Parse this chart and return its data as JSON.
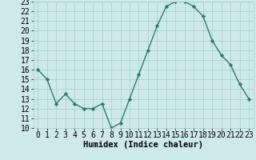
{
  "x": [
    0,
    1,
    2,
    3,
    4,
    5,
    6,
    7,
    8,
    9,
    10,
    11,
    12,
    13,
    14,
    15,
    16,
    17,
    18,
    19,
    20,
    21,
    22,
    23
  ],
  "y": [
    16,
    15,
    12.5,
    13.5,
    12.5,
    12,
    12,
    12.5,
    10,
    10.5,
    13,
    15.5,
    18,
    20.5,
    22.5,
    23,
    23,
    22.5,
    21.5,
    19,
    17.5,
    16.5,
    14.5,
    13
  ],
  "line_color": "#2d7b6e",
  "marker_color": "#2d7b6e",
  "background_color": "#ceeae8",
  "grid_color": "#aacfcc",
  "xlabel": "Humidex (Indice chaleur)",
  "xlim": [
    -0.5,
    23.5
  ],
  "ylim": [
    10,
    23
  ],
  "yticks": [
    10,
    11,
    12,
    13,
    14,
    15,
    16,
    17,
    18,
    19,
    20,
    21,
    22,
    23
  ],
  "xticks": [
    0,
    1,
    2,
    3,
    4,
    5,
    6,
    7,
    8,
    9,
    10,
    11,
    12,
    13,
    14,
    15,
    16,
    17,
    18,
    19,
    20,
    21,
    22,
    23
  ],
  "tick_fontsize": 7,
  "xlabel_fontsize": 7.5,
  "linewidth": 1.0,
  "markersize": 2.2
}
